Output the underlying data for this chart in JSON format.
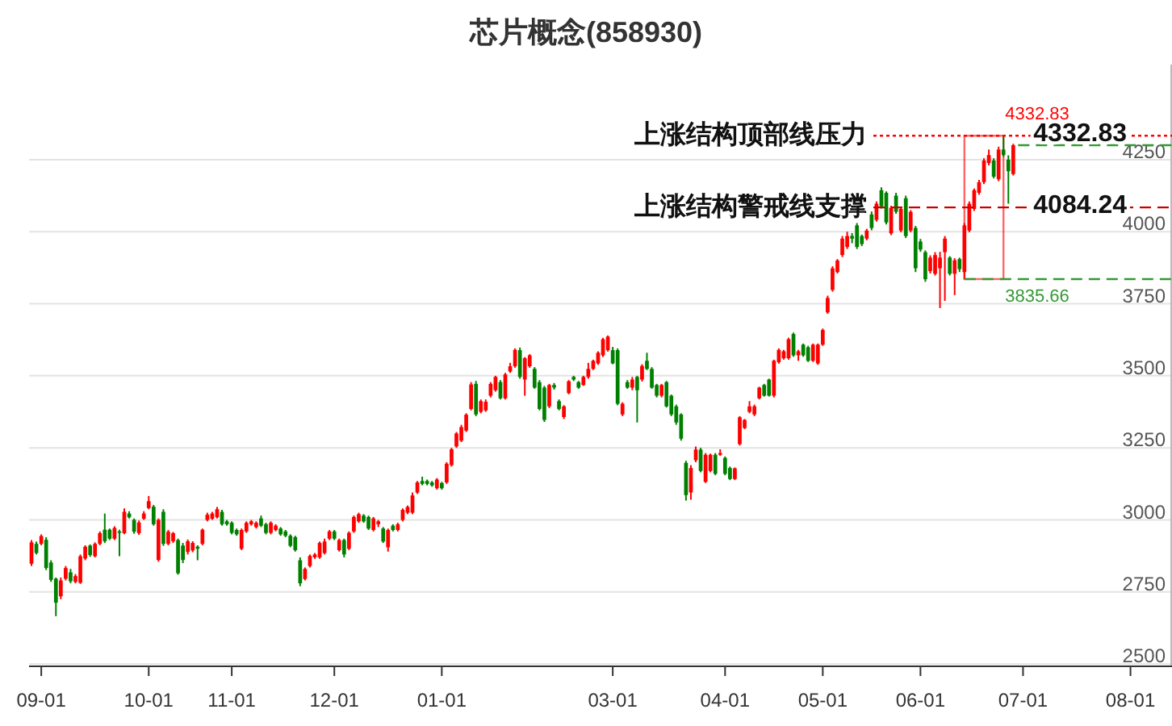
{
  "chart_data": {
    "type": "candlestick",
    "title": "芯片概念(858930)",
    "categories": [
      null,
      null,
      "09-01",
      null,
      null,
      null,
      null,
      null,
      null,
      null,
      null,
      null,
      null,
      null,
      null,
      null,
      null,
      null,
      null,
      null,
      null,
      null,
      null,
      null,
      "10-01",
      null,
      null,
      null,
      null,
      null,
      null,
      null,
      null,
      null,
      null,
      null,
      null,
      null,
      null,
      null,
      null,
      "11-01",
      null,
      null,
      null,
      null,
      null,
      null,
      null,
      null,
      null,
      null,
      null,
      null,
      null,
      null,
      null,
      null,
      null,
      null,
      null,
      null,
      "12-01",
      null,
      null,
      null,
      null,
      null,
      null,
      null,
      null,
      null,
      null,
      null,
      null,
      null,
      null,
      null,
      null,
      null,
      null,
      null,
      null,
      null,
      "01-01",
      null,
      null,
      null,
      null,
      null,
      null,
      null,
      null,
      null,
      null,
      null,
      null,
      null,
      null,
      null,
      null,
      null,
      null,
      null,
      null,
      null,
      null,
      null,
      null,
      null,
      null,
      null,
      null,
      null,
      null,
      null,
      null,
      null,
      null,
      "03-01",
      null,
      null,
      null,
      null,
      null,
      null,
      null,
      null,
      null,
      null,
      null,
      null,
      null,
      null,
      null,
      null,
      null,
      null,
      null,
      null,
      null,
      null,
      "04-01",
      null,
      null,
      null,
      null,
      null,
      null,
      null,
      null,
      null,
      null,
      null,
      null,
      null,
      null,
      null,
      null,
      null,
      null,
      null,
      "05-01",
      null,
      null,
      null,
      null,
      null,
      null,
      null,
      null,
      null,
      null,
      null,
      null,
      null,
      null,
      null,
      null,
      null,
      null,
      null,
      "06-01",
      null,
      null,
      null,
      null,
      null,
      null,
      null,
      null,
      null,
      null,
      null,
      null,
      null,
      null,
      null,
      null,
      null,
      null,
      null,
      null,
      "07-01",
      null,
      null,
      null,
      null,
      null,
      null,
      null,
      null,
      null,
      null,
      null,
      null,
      null,
      null,
      null,
      null,
      null,
      null,
      null,
      null,
      null,
      "08-01",
      null,
      null,
      null,
      null,
      null,
      null,
      null,
      null
    ],
    "ohlc": [
      [
        2848,
        2930,
        2840,
        2922
      ],
      [
        2917,
        2925,
        2880,
        2885
      ],
      [
        2917,
        2950,
        2912,
        2944
      ],
      [
        2931,
        2940,
        2826,
        2833
      ],
      [
        2852,
        2860,
        2785,
        2792
      ],
      [
        2796,
        2800,
        2666,
        2713
      ],
      [
        2735,
        2800,
        2725,
        2790
      ],
      [
        2796,
        2840,
        2790,
        2833
      ],
      [
        2818,
        2830,
        2780,
        2787
      ],
      [
        2785,
        2812,
        2780,
        2805
      ],
      [
        2782,
        2880,
        2778,
        2874
      ],
      [
        2866,
        2912,
        2860,
        2907
      ],
      [
        2911,
        2915,
        2872,
        2878
      ],
      [
        2874,
        2922,
        2870,
        2917
      ],
      [
        2917,
        2960,
        2912,
        2954
      ],
      [
        2966,
        3022,
        2920,
        2926
      ],
      [
        2966,
        2970,
        2930,
        2935
      ],
      [
        2935,
        2978,
        2930,
        2972
      ],
      [
        2960,
        2966,
        2874,
        2955
      ],
      [
        2954,
        3040,
        2950,
        3028
      ],
      [
        3022,
        3030,
        3005,
        3009
      ],
      [
        3000,
        3005,
        2952,
        2959
      ],
      [
        2954,
        2998,
        2948,
        2991
      ],
      [
        3004,
        3030,
        3000,
        3022
      ],
      [
        3041,
        3083,
        3037,
        3065
      ],
      [
        3046,
        3052,
        2980,
        2985
      ],
      [
        2861,
        3005,
        2855,
        3000
      ],
      [
        3028,
        3037,
        2910,
        2917
      ],
      [
        2917,
        2965,
        2912,
        2959
      ],
      [
        2926,
        2958,
        2920,
        2954
      ],
      [
        2930,
        2935,
        2810,
        2815
      ],
      [
        2911,
        2920,
        2850,
        2861
      ],
      [
        2889,
        2932,
        2880,
        2926
      ],
      [
        2894,
        2926,
        2888,
        2920
      ],
      [
        2907,
        2912,
        2860,
        2900
      ],
      [
        2917,
        2970,
        2912,
        2966
      ],
      [
        3000,
        3025,
        2995,
        3018
      ],
      [
        3004,
        3028,
        3000,
        3022
      ],
      [
        3009,
        3045,
        3005,
        3037
      ],
      [
        3028,
        3035,
        2980,
        2985
      ],
      [
        2995,
        3000,
        2980,
        2985
      ],
      [
        2990,
        2995,
        2950,
        2955
      ],
      [
        2965,
        2970,
        2945,
        2950
      ],
      [
        2900,
        2970,
        2895,
        2965
      ],
      [
        2960,
        2995,
        2955,
        2990
      ],
      [
        2985,
        3000,
        2980,
        2995
      ],
      [
        2975,
        2995,
        2970,
        2990
      ],
      [
        3005,
        3015,
        2975,
        2980
      ],
      [
        2985,
        2990,
        2950,
        2955
      ],
      [
        2955,
        2995,
        2950,
        2990
      ],
      [
        2965,
        2985,
        2960,
        2980
      ],
      [
        2970,
        2975,
        2945,
        2950
      ],
      [
        2960,
        2965,
        2940,
        2945
      ],
      [
        2945,
        2950,
        2905,
        2910
      ],
      [
        2940,
        2945,
        2890,
        2895
      ],
      [
        2860,
        2870,
        2770,
        2780
      ],
      [
        2795,
        2835,
        2790,
        2830
      ],
      [
        2840,
        2880,
        2835,
        2875
      ],
      [
        2870,
        2885,
        2865,
        2880
      ],
      [
        2870,
        2925,
        2865,
        2920
      ],
      [
        2885,
        2935,
        2880,
        2925
      ],
      [
        2935,
        2965,
        2930,
        2960
      ],
      [
        2960,
        2965,
        2930,
        2935
      ],
      [
        2895,
        2935,
        2890,
        2930
      ],
      [
        2930,
        2935,
        2870,
        2880
      ],
      [
        2900,
        2960,
        2895,
        2955
      ],
      [
        2960,
        3015,
        2955,
        3010
      ],
      [
        2995,
        3025,
        2990,
        3020
      ],
      [
        3015,
        3020,
        2990,
        2995
      ],
      [
        3010,
        3015,
        2965,
        2970
      ],
      [
        2965,
        3010,
        2960,
        3005
      ],
      [
        2985,
        3000,
        2975,
        2995
      ],
      [
        2970,
        2975,
        2920,
        2925
      ],
      [
        2905,
        2970,
        2890,
        2965
      ],
      [
        2980,
        2985,
        2960,
        2965
      ],
      [
        2965,
        2990,
        2960,
        2985
      ],
      [
        3000,
        3040,
        2995,
        3035
      ],
      [
        3025,
        3050,
        3020,
        3045
      ],
      [
        3025,
        3095,
        3020,
        3085
      ],
      [
        3095,
        3135,
        3090,
        3130
      ],
      [
        3135,
        3150,
        3120,
        3125
      ],
      [
        3135,
        3140,
        3120,
        3125
      ],
      [
        3130,
        3135,
        3115,
        3120
      ],
      [
        3110,
        3145,
        3105,
        3140
      ],
      [
        3128,
        3132,
        3105,
        3110
      ],
      [
        3130,
        3200,
        3125,
        3195
      ],
      [
        3190,
        3250,
        3185,
        3245
      ],
      [
        3255,
        3305,
        3250,
        3300
      ],
      [
        3275,
        3330,
        3270,
        3322
      ],
      [
        3310,
        3370,
        3305,
        3365
      ],
      [
        3385,
        3478,
        3380,
        3470
      ],
      [
        3472,
        3482,
        3360,
        3366
      ],
      [
        3375,
        3418,
        3370,
        3412
      ],
      [
        3380,
        3418,
        3375,
        3410
      ],
      [
        3431,
        3478,
        3425,
        3472
      ],
      [
        3450,
        3500,
        3445,
        3496
      ],
      [
        3478,
        3485,
        3418,
        3422
      ],
      [
        3422,
        3510,
        3418,
        3505
      ],
      [
        3515,
        3545,
        3510,
        3533
      ],
      [
        3533,
        3595,
        3528,
        3590
      ],
      [
        3589,
        3598,
        3490,
        3496
      ],
      [
        3487,
        3565,
        3431,
        3561
      ],
      [
        3533,
        3575,
        3528,
        3571
      ],
      [
        3524,
        3530,
        3455,
        3459
      ],
      [
        3478,
        3485,
        3380,
        3385
      ],
      [
        3459,
        3465,
        3340,
        3347
      ],
      [
        3394,
        3472,
        3388,
        3468
      ],
      [
        3468,
        3475,
        3452,
        3459
      ],
      [
        3412,
        3418,
        3380,
        3385
      ],
      [
        3357,
        3398,
        3350,
        3394
      ],
      [
        3440,
        3485,
        3436,
        3481
      ],
      [
        3496,
        3500,
        3482,
        3487
      ],
      [
        3478,
        3482,
        3455,
        3459
      ],
      [
        3468,
        3500,
        3465,
        3496
      ],
      [
        3496,
        3545,
        3490,
        3524
      ],
      [
        3524,
        3556,
        3520,
        3552
      ],
      [
        3543,
        3585,
        3538,
        3580
      ],
      [
        3571,
        3632,
        3565,
        3627
      ],
      [
        3589,
        3640,
        3584,
        3636
      ],
      [
        3589,
        3600,
        3540,
        3543
      ],
      [
        3589,
        3595,
        3398,
        3403
      ],
      [
        3366,
        3408,
        3360,
        3403
      ],
      [
        3478,
        3485,
        3455,
        3459
      ],
      [
        3459,
        3496,
        3450,
        3487
      ],
      [
        3496,
        3500,
        3338,
        3450
      ],
      [
        3487,
        3540,
        3480,
        3534
      ],
      [
        3552,
        3580,
        3520,
        3524
      ],
      [
        3524,
        3530,
        3455,
        3459
      ],
      [
        3468,
        3472,
        3425,
        3431
      ],
      [
        3431,
        3472,
        3425,
        3468
      ],
      [
        3478,
        3482,
        3390,
        3394
      ],
      [
        3431,
        3435,
        3360,
        3366
      ],
      [
        3394,
        3400,
        3330,
        3338
      ],
      [
        3366,
        3370,
        3275,
        3282
      ],
      [
        3198,
        3205,
        3067,
        3086
      ],
      [
        3095,
        3190,
        3070,
        3180
      ],
      [
        3207,
        3255,
        3200,
        3244
      ],
      [
        3244,
        3250,
        3165,
        3170
      ],
      [
        3132,
        3232,
        3128,
        3226
      ],
      [
        3170,
        3230,
        3165,
        3226
      ],
      [
        3226,
        3232,
        3155,
        3160
      ],
      [
        3226,
        3245,
        3222,
        3232
      ],
      [
        3215,
        3220,
        3155,
        3160
      ],
      [
        3180,
        3185,
        3138,
        3142
      ],
      [
        3142,
        3182,
        3138,
        3179
      ],
      [
        3263,
        3360,
        3258,
        3356
      ],
      [
        3319,
        3350,
        3315,
        3347
      ],
      [
        3375,
        3412,
        3370,
        3394
      ],
      [
        3366,
        3400,
        3360,
        3394
      ],
      [
        3422,
        3462,
        3418,
        3459
      ],
      [
        3468,
        3472,
        3428,
        3431
      ],
      [
        3487,
        3490,
        3428,
        3431
      ],
      [
        3431,
        3556,
        3425,
        3552
      ],
      [
        3547,
        3595,
        3542,
        3590
      ],
      [
        3561,
        3590,
        3556,
        3585
      ],
      [
        3561,
        3632,
        3556,
        3627
      ],
      [
        3645,
        3650,
        3566,
        3571
      ],
      [
        3571,
        3590,
        3552,
        3585
      ],
      [
        3608,
        3612,
        3566,
        3571
      ],
      [
        3599,
        3604,
        3548,
        3552
      ],
      [
        3552,
        3612,
        3548,
        3608
      ],
      [
        3543,
        3612,
        3538,
        3608
      ],
      [
        3608,
        3664,
        3604,
        3659
      ],
      [
        3720,
        3778,
        3715,
        3770
      ],
      [
        3798,
        3880,
        3792,
        3873
      ],
      [
        3860,
        3905,
        3855,
        3900
      ],
      [
        3919,
        3985,
        3912,
        3976
      ],
      [
        3947,
        4000,
        3940,
        3985
      ],
      [
        3985,
        3995,
        3960,
        3976
      ],
      [
        4022,
        4030,
        3940,
        3947
      ],
      [
        3985,
        3990,
        3950,
        3957
      ],
      [
        3976,
        4010,
        3970,
        4004
      ],
      [
        4060,
        4070,
        4005,
        4013
      ],
      [
        4041,
        4105,
        4035,
        4097
      ],
      [
        4144,
        4154,
        4080,
        4088
      ],
      [
        4135,
        4140,
        4025,
        4032
      ],
      [
        3994,
        4090,
        3988,
        4083
      ],
      [
        4125,
        4135,
        4062,
        4069
      ],
      [
        4004,
        4085,
        3998,
        4079
      ],
      [
        4116,
        4125,
        3978,
        3985
      ],
      [
        4004,
        4075,
        3998,
        4069
      ],
      [
        4013,
        4020,
        3860,
        3873
      ],
      [
        3966,
        3975,
        3930,
        3938
      ],
      [
        3929,
        3935,
        3826,
        3835
      ],
      [
        3863,
        3918,
        3855,
        3910
      ],
      [
        3854,
        3929,
        3848,
        3919
      ],
      [
        3873,
        3930,
        3735,
        3910
      ],
      [
        3929,
        3985,
        3760,
        3976
      ],
      [
        3910,
        3915,
        3848,
        3854
      ],
      [
        3854,
        3908,
        3780,
        3901
      ],
      [
        3905,
        3910,
        3860,
        3870
      ],
      [
        3860,
        4030,
        3835.66,
        4022
      ],
      [
        4004,
        4105,
        3998,
        4097
      ],
      [
        4079,
        4150,
        4072,
        4144
      ],
      [
        4135,
        4180,
        4128,
        4172
      ],
      [
        4172,
        4255,
        4165,
        4247
      ],
      [
        4238,
        4285,
        4230,
        4266
      ],
      [
        4247,
        4255,
        4185,
        4191
      ],
      [
        4182,
        4295,
        4175,
        4285
      ],
      [
        4285,
        4332.83,
        4260,
        4266
      ],
      [
        4250,
        4265,
        4097,
        4210
      ],
      [
        4200,
        4305,
        4195,
        4300
      ],
      null,
      null,
      null,
      null,
      null,
      null,
      null,
      null,
      null,
      null,
      null,
      null,
      null,
      null,
      null,
      null,
      null,
      null,
      null,
      null,
      null,
      null,
      null,
      null,
      null,
      null,
      null,
      null,
      null,
      null,
      null,
      null
    ],
    "colors": [
      "#ff0000",
      "#008000",
      "#ff0000",
      "#008000",
      "#008000",
      "#008000",
      "#ff0000",
      "#ff0000",
      "#008000",
      "#ff0000",
      "#ff0000",
      "#ff0000",
      "#008000",
      "#ff0000",
      "#ff0000",
      "#008000",
      "#008000",
      "#ff0000",
      "#008000",
      "#ff0000",
      "#008000",
      "#008000",
      "#ff0000",
      "#ff0000",
      "#ff0000",
      "#008000",
      "#ff0000",
      "#008000",
      "#ff0000",
      "#ff0000",
      "#008000",
      "#008000",
      "#ff0000",
      "#ff0000",
      "#008000",
      "#ff0000",
      "#ff0000",
      "#ff0000",
      "#ff0000",
      "#008000",
      "#008000",
      "#008000",
      "#008000",
      "#ff0000",
      "#ff0000",
      "#ff0000",
      "#ff0000",
      "#008000",
      "#008000",
      "#ff0000",
      "#ff0000",
      "#008000",
      "#008000",
      "#008000",
      "#008000",
      "#008000",
      "#ff0000",
      "#ff0000",
      "#ff0000",
      "#ff0000",
      "#ff0000",
      "#ff0000",
      "#008000",
      "#ff0000",
      "#008000",
      "#ff0000",
      "#ff0000",
      "#ff0000",
      "#008000",
      "#008000",
      "#ff0000",
      "#ff0000",
      "#008000",
      "#ff0000",
      "#008000",
      "#ff0000",
      "#ff0000",
      "#ff0000",
      "#ff0000",
      "#ff0000",
      "#008000",
      "#008000",
      "#008000",
      "#ff0000",
      "#008000",
      "#ff0000",
      "#ff0000",
      "#ff0000",
      "#ff0000",
      "#ff0000",
      "#ff0000",
      "#008000",
      "#ff0000",
      "#ff0000",
      "#ff0000",
      "#ff0000",
      "#008000",
      "#ff0000",
      "#ff0000",
      "#ff0000",
      "#008000",
      "#ff0000",
      "#ff0000",
      "#008000",
      "#008000",
      "#008000",
      "#ff0000",
      "#008000",
      "#008000",
      "#ff0000",
      "#ff0000",
      "#008000",
      "#008000",
      "#ff0000",
      "#ff0000",
      "#ff0000",
      "#ff0000",
      "#ff0000",
      "#ff0000",
      "#008000",
      "#008000",
      "#ff0000",
      "#008000",
      "#ff0000",
      "#008000",
      "#ff0000",
      "#008000",
      "#008000",
      "#008000",
      "#ff0000",
      "#008000",
      "#008000",
      "#008000",
      "#008000",
      "#008000",
      "#ff0000",
      "#ff0000",
      "#008000",
      "#ff0000",
      "#ff0000",
      "#008000",
      "#ff0000",
      "#008000",
      "#008000",
      "#ff0000",
      "#ff0000",
      "#ff0000",
      "#ff0000",
      "#ff0000",
      "#ff0000",
      "#008000",
      "#008000",
      "#ff0000",
      "#ff0000",
      "#ff0000",
      "#ff0000",
      "#008000",
      "#ff0000",
      "#008000",
      "#008000",
      "#ff0000",
      "#ff0000",
      "#ff0000",
      "#ff0000",
      "#ff0000",
      "#ff0000",
      "#ff0000",
      "#ff0000",
      "#008000",
      "#008000",
      "#008000",
      "#ff0000",
      "#008000",
      "#ff0000",
      "#008000",
      "#008000",
      "#ff0000",
      "#008000",
      "#ff0000",
      "#008000",
      "#ff0000",
      "#008000",
      "#008000",
      "#008000",
      "#ff0000",
      "#ff0000",
      "#ff0000",
      "#ff0000",
      "#008000",
      "#ff0000",
      "#008000",
      "#ff0000",
      "#ff0000",
      "#ff0000",
      "#ff0000",
      "#ff0000",
      "#ff0000",
      "#008000",
      "#ff0000",
      "#008000",
      "#008000",
      "#ff0000",
      null,
      null,
      null,
      null,
      null,
      null,
      null,
      null,
      null,
      null,
      null,
      null,
      null,
      null,
      null,
      null,
      null,
      null,
      null,
      null,
      null,
      null,
      null,
      null,
      null,
      null,
      null,
      null,
      null,
      null,
      null,
      null
    ],
    "ylim": [
      2492,
      4580
    ],
    "yticks": [
      2500,
      2750,
      3000,
      3250,
      3500,
      3750,
      4000,
      4250
    ],
    "grid": "y",
    "ref_lines": [
      {
        "axis": "y",
        "value": 4332.83,
        "label": "上涨结构顶部线压力",
        "color": "#ff0000",
        "line_style": "dotted"
      },
      {
        "axis": "y",
        "value": 4084.24,
        "label": "上涨结构警戒线支撑",
        "color": "#cc0000",
        "line_style": "dashed"
      },
      {
        "axis": "y",
        "value": 3835.66,
        "label": "3835.66",
        "color": "#339933",
        "line_style": "dashed"
      },
      {
        "axis": "y",
        "value": 4300,
        "color": "#339933",
        "line_style": "dashed"
      }
    ],
    "annotations": [
      {
        "text": "4332.83",
        "y": 4332.83
      },
      {
        "text": "4332.83",
        "y": 4332.83
      },
      {
        "text": "4084.24",
        "y": 4084.24
      }
    ]
  }
}
